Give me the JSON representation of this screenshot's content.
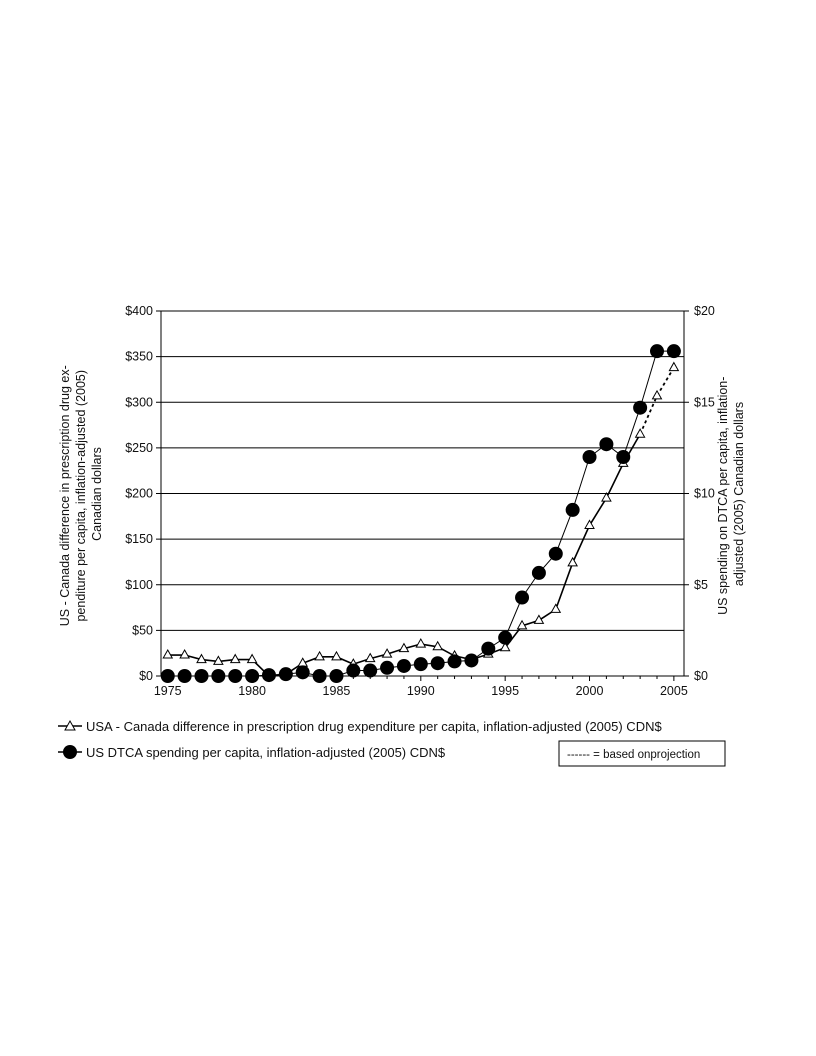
{
  "chart_data": {
    "type": "line",
    "x": [
      1975,
      1976,
      1977,
      1978,
      1979,
      1980,
      1981,
      1982,
      1983,
      1984,
      1985,
      1986,
      1987,
      1988,
      1989,
      1990,
      1991,
      1992,
      1993,
      1994,
      1995,
      1996,
      1997,
      1998,
      1999,
      2000,
      2001,
      2002,
      2003,
      2004,
      2005
    ],
    "x_ticks": [
      1975,
      1980,
      1985,
      1990,
      1995,
      2000,
      2005
    ],
    "x_tick_labels": [
      "1975",
      "1980",
      "1985",
      "1990",
      "1995",
      "2000",
      "2005"
    ],
    "xlim": [
      1974.6,
      2005.6
    ],
    "y_left": {
      "label_lines": [
        "US - Canada difference in prescription drug ex-",
        "penditure per capita, inflation-adjusted (2005)",
        "Canadian dollars"
      ],
      "ticks": [
        0,
        50,
        100,
        150,
        200,
        250,
        300,
        350,
        400
      ],
      "tick_labels": [
        "$0",
        "$50",
        "$100",
        "$150",
        "$200",
        "$250",
        "$300",
        "$350",
        "$400"
      ],
      "ylim": [
        0,
        400
      ]
    },
    "y_right": {
      "label_lines": [
        "US spending on DTCA per capita, inflation-",
        "adjusted (2005) Canadian dollars"
      ],
      "ticks": [
        0,
        5,
        10,
        15,
        20
      ],
      "tick_labels": [
        "$0",
        "$5",
        "$10",
        "$15",
        "$20"
      ],
      "ylim": [
        0,
        20
      ]
    },
    "grid": true,
    "series": [
      {
        "name": "USA - Canada difference in prescription drug expenditure per capita, inflation-adjusted (2005) CDN$",
        "axis": "left",
        "marker": "triangle",
        "values": [
          23,
          23,
          18,
          16,
          18,
          18,
          0,
          2,
          14,
          21,
          21,
          13,
          19,
          24,
          30,
          35,
          32,
          22,
          18,
          24,
          31,
          55,
          61,
          73,
          124,
          165,
          195,
          233,
          265,
          307,
          338
        ],
        "projected_from_index": 28
      },
      {
        "name": "US DTCA spending per capita, inflation-adjusted (2005) CDN$",
        "axis": "right",
        "marker": "circle",
        "values": [
          0,
          0,
          0,
          0,
          0,
          0,
          0.05,
          0.1,
          0.2,
          0,
          0,
          0.3,
          0.3,
          0.45,
          0.55,
          0.65,
          0.7,
          0.8,
          0.85,
          1.5,
          2.1,
          4.3,
          5.65,
          6.7,
          9.1,
          12.0,
          12.7,
          12.0,
          14.7,
          17.8,
          17.8
        ]
      }
    ],
    "note": "------ = based onprojection",
    "colors": {
      "line": "#000000",
      "grid": "#000000",
      "background": "#ffffff"
    }
  }
}
